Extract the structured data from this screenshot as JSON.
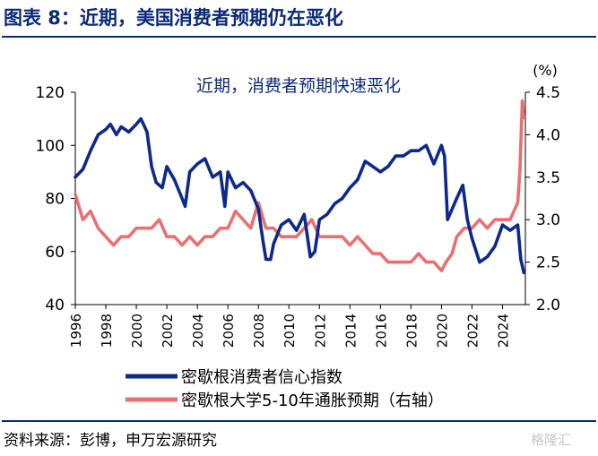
{
  "figure_title": "图表 8：近期，美国消费者预期仍在恶化",
  "source": "资料来源：彭博，申万宏源研究",
  "watermark": "格隆汇",
  "colors": {
    "navy": "#0d2a8a",
    "coral": "#e8706f",
    "title": "#0a2a7a",
    "axis": "#000000"
  },
  "chart_data": {
    "type": "line",
    "title": "近期，消费者预期快速恶化",
    "right_axis_unit": "(%)",
    "x_ticks": [
      "1996",
      "1998",
      "2000",
      "2002",
      "2004",
      "2006",
      "2008",
      "2010",
      "2012",
      "2014",
      "2016",
      "2018",
      "2020",
      "2022",
      "2024"
    ],
    "xlim": [
      1996,
      2025.5
    ],
    "ylim_left": [
      40,
      120
    ],
    "yticks_left": [
      "40",
      "60",
      "80",
      "100",
      "120"
    ],
    "ylim_right": [
      2.0,
      4.5
    ],
    "yticks_right": [
      "2.0",
      "2.5",
      "3.0",
      "3.5",
      "4.0",
      "4.5"
    ],
    "legend_position": "bottom",
    "series": [
      {
        "name": "密歇根消费者信心指数",
        "axis": "left",
        "color": "#0d2a8a",
        "x": [
          1996,
          1996.5,
          1997,
          1997.5,
          1998,
          1998.3,
          1998.7,
          1999,
          1999.5,
          2000,
          2000.3,
          2000.7,
          2001,
          2001.3,
          2001.7,
          2002,
          2002.5,
          2003,
          2003.2,
          2003.5,
          2004,
          2004.5,
          2005,
          2005.5,
          2005.8,
          2006,
          2006.5,
          2007,
          2007.5,
          2008,
          2008.3,
          2008.5,
          2008.8,
          2009,
          2009.5,
          2010,
          2010.5,
          2011,
          2011.4,
          2011.7,
          2012,
          2012.5,
          2013,
          2013.5,
          2014,
          2014.5,
          2015,
          2015.5,
          2016,
          2016.5,
          2017,
          2017.5,
          2018,
          2018.5,
          2019,
          2019.5,
          2020,
          2020.2,
          2020.4,
          2020.7,
          2021,
          2021.4,
          2021.7,
          2022,
          2022.5,
          2023,
          2023.5,
          2024,
          2024.5,
          2025,
          2025.2,
          2025.4
        ],
        "y": [
          88,
          91,
          98,
          104,
          106,
          108,
          104,
          107,
          105,
          108,
          110,
          105,
          92,
          86,
          84,
          92,
          87,
          80,
          77,
          90,
          93,
          95,
          88,
          90,
          77,
          90,
          84,
          86,
          83,
          76,
          64,
          57,
          57,
          63,
          70,
          72,
          68,
          74,
          58,
          60,
          72,
          74,
          78,
          80,
          84,
          87,
          94,
          92,
          90,
          92,
          96,
          96,
          98,
          98,
          100,
          93,
          100,
          96,
          72,
          76,
          80,
          85,
          72,
          65,
          56,
          58,
          62,
          70,
          68,
          70,
          57,
          52
        ]
      },
      {
        "name": "密歇根大学5-10年通胀预期（右轴）",
        "axis": "right",
        "color": "#e8706f",
        "x": [
          1996,
          1996.5,
          1997,
          1997.5,
          1998,
          1998.5,
          1999,
          1999.5,
          2000,
          2000.5,
          2001,
          2001.5,
          2002,
          2002.5,
          2003,
          2003.5,
          2004,
          2004.5,
          2005,
          2005.5,
          2006,
          2006.5,
          2007,
          2007.5,
          2008,
          2008.5,
          2009,
          2009.5,
          2010,
          2010.5,
          2011,
          2011.5,
          2012,
          2012.5,
          2013,
          2013.5,
          2014,
          2014.5,
          2015,
          2015.5,
          2016,
          2016.5,
          2017,
          2017.5,
          2018,
          2018.5,
          2019,
          2019.5,
          2020,
          2020.3,
          2020.7,
          2021,
          2021.5,
          2022,
          2022.5,
          2023,
          2023.5,
          2024,
          2024.5,
          2025,
          2025.15,
          2025.3,
          2025.4
        ],
        "y": [
          3.3,
          3.0,
          3.1,
          2.9,
          2.8,
          2.7,
          2.8,
          2.8,
          2.9,
          2.9,
          2.9,
          3.0,
          2.8,
          2.8,
          2.7,
          2.8,
          2.7,
          2.8,
          2.8,
          2.9,
          2.9,
          3.1,
          3.0,
          2.9,
          3.2,
          2.9,
          2.9,
          2.8,
          2.8,
          2.8,
          2.9,
          3.0,
          2.8,
          2.8,
          2.8,
          2.8,
          2.7,
          2.8,
          2.7,
          2.6,
          2.6,
          2.5,
          2.5,
          2.5,
          2.5,
          2.6,
          2.5,
          2.5,
          2.4,
          2.5,
          2.6,
          2.8,
          2.9,
          2.9,
          3.0,
          2.9,
          3.0,
          3.0,
          3.0,
          3.2,
          3.6,
          4.4,
          4.2
        ]
      }
    ]
  }
}
